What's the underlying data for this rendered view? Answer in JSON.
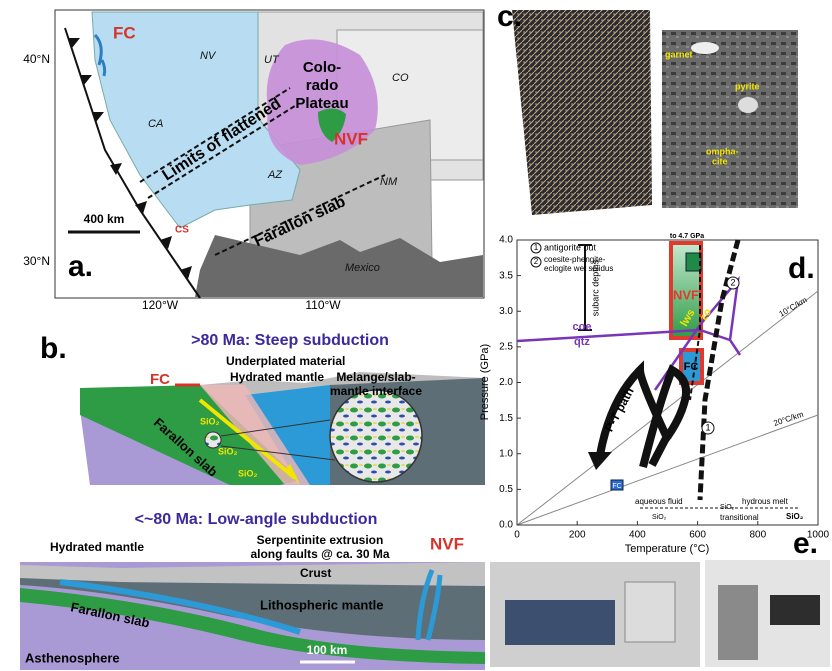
{
  "panel_a": {
    "label": "a.",
    "lat_labels": [
      "40°N",
      "30°N"
    ],
    "lon_labels": [
      "120°W",
      "110°W"
    ],
    "places": {
      "fc": "FC",
      "nv": "NV",
      "ut": "UT",
      "co": "CO",
      "plateau": [
        "Colo-",
        "rado",
        "Plateau"
      ],
      "nvf": "NVF",
      "ca": "CA",
      "az": "AZ",
      "nm": "NM",
      "cs": "CS",
      "mexico": "Mexico"
    },
    "limits": "Limits of flattened",
    "slab": "Farallon slab",
    "scale": "400 km"
  },
  "panel_b": {
    "label": "b.",
    "top_title": ">80 Ma: Steep subduction",
    "fc": "FC",
    "underplated": "Underplated material",
    "hydrated_top": "Hydrated mantle",
    "melange": [
      "Melange/slab-",
      "mantle interface"
    ],
    "sio2": [
      "SiO₂",
      "SiO₂",
      "SiO₂"
    ],
    "slab_top": "Farallon slab",
    "bottom_title": "<~80 Ma: Low-angle subduction",
    "nvf": "NVF",
    "hydrated_bottom": "Hydrated mantle",
    "serpentinite": [
      "Serpentinite extrusion",
      "along faults @ ca. 30 Ma"
    ],
    "crust": "Crust",
    "lith": "Lithospheric mantle",
    "slab_bottom": "Farallon slab",
    "astheno": "Asthenosphere",
    "scale": "100 km"
  },
  "panel_c": {
    "label": "c.",
    "minerals": [
      "garnet",
      "pyrite",
      "ompha-",
      "cite"
    ]
  },
  "panel_d": {
    "label": "d.",
    "arrow_note": "to 4.7 GPa",
    "circle_nums": [
      "1",
      "2"
    ],
    "curve_nums": [
      "1",
      "2"
    ],
    "legend_1": "antigorite out",
    "legend_2": [
      "coesite-phengite-",
      "eclogite wet solidus"
    ],
    "subarc": "subarc depths",
    "nvf": "NVF",
    "lws": "lws",
    "zo": "zo",
    "coe": "coe",
    "qtz": "qtz",
    "fc": "FC",
    "pt_path": "P-T path",
    "geotherms": [
      "10°C/km",
      "20°C/km"
    ],
    "fc_small": "FC",
    "fluid": "aqueous fluid",
    "transitional": "transitional",
    "melt": "hydrous melt",
    "sio2": [
      "SiO₂",
      "SiO₂",
      "SiO₂"
    ],
    "y_label": "Pressure (GPa)",
    "x_label": "Temperature (°C)",
    "xlim": [
      0,
      1000
    ],
    "ylim": [
      0,
      4
    ],
    "xticks": [
      0,
      200,
      400,
      600,
      800,
      1000
    ],
    "yticks": [
      {
        "value": 0,
        "label": "0.0"
      },
      {
        "value": 0.5,
        "label": "0.5"
      },
      {
        "value": 1,
        "label": "1.0"
      },
      {
        "value": 1.5,
        "label": "1.5"
      },
      {
        "value": 2,
        "label": "2.0"
      },
      {
        "value": 2.5,
        "label": "2.5"
      },
      {
        "value": 3,
        "label": "3.0"
      },
      {
        "value": 3.5,
        "label": "3.5"
      },
      {
        "value": 4,
        "label": "4.0"
      }
    ]
  },
  "panel_e": {
    "label": "e."
  }
}
